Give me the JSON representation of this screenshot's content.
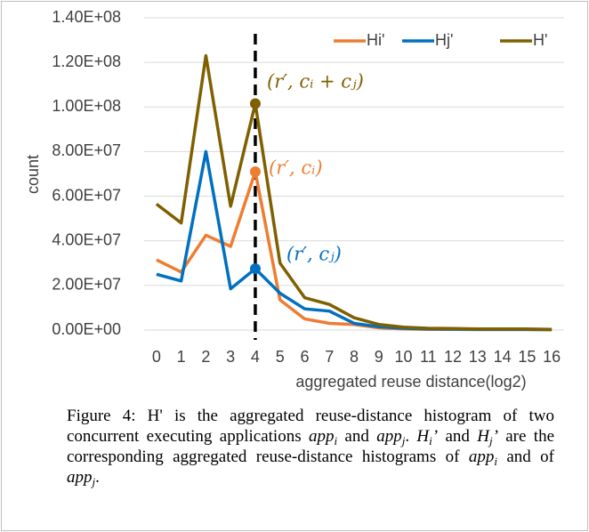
{
  "chart_data": {
    "type": "line",
    "categories": [
      "0",
      "1",
      "2",
      "3",
      "4",
      "5",
      "6",
      "7",
      "8",
      "9",
      "10",
      "11",
      "12",
      "13",
      "14",
      "15",
      "16"
    ],
    "series": [
      {
        "name": "Hi'",
        "color": "#ed7d31",
        "values": [
          31500000,
          26000000,
          42500000,
          37500000,
          71000000,
          13500000,
          5000000,
          3000000,
          2500000,
          1000000,
          500000,
          300000,
          300000,
          200000,
          200000,
          200000,
          100000
        ]
      },
      {
        "name": "Hj'",
        "color": "#0070c0",
        "values": [
          25000000,
          22000000,
          80000000,
          18500000,
          27500000,
          16500000,
          9500000,
          8500000,
          3000000,
          1500000,
          800000,
          500000,
          400000,
          300000,
          300000,
          300000,
          200000
        ]
      },
      {
        "name": "H'",
        "color": "#7f6000",
        "values": [
          56500000,
          48000000,
          123000000,
          55500000,
          101500000,
          30000000,
          14500000,
          11500000,
          5500000,
          2500000,
          1300000,
          800000,
          700000,
          500000,
          500000,
          500000,
          300000
        ]
      }
    ],
    "ylim": [
      0,
      140000000
    ],
    "yticks": [
      {
        "value": 0,
        "label": "0.00E+00"
      },
      {
        "value": 20000000,
        "label": "2.00E+07"
      },
      {
        "value": 40000000,
        "label": "4.00E+07"
      },
      {
        "value": 60000000,
        "label": "6.00E+07"
      },
      {
        "value": 80000000,
        "label": "8.00E+07"
      },
      {
        "value": 100000000,
        "label": "1.00E+08"
      },
      {
        "value": 120000000,
        "label": "1.20E+08"
      },
      {
        "value": 140000000,
        "label": "1.40E+08"
      }
    ],
    "grid": true,
    "ylabel": "count",
    "xlabel": "aggregated reuse distance(log2)",
    "legend": "top-right",
    "annotations": [
      {
        "text": "(r′, cᵢ + cⱼ)",
        "color": "#7f6000"
      },
      {
        "text": "(r′, cᵢ)",
        "color": "#ed7d31"
      },
      {
        "text": "(r′, cⱼ)",
        "color": "#0070c0"
      }
    ]
  },
  "caption": [
    {
      "text": "Figure 4: H' is the aggregated reuse-distance histogram of two concurrent executing applications ",
      "style": "plain"
    },
    {
      "text": "app",
      "style": "italic"
    },
    {
      "text": "i",
      "style": "sub"
    },
    {
      "text": " and ",
      "style": "plain"
    },
    {
      "text": "app",
      "style": "italic"
    },
    {
      "text": "j",
      "style": "sub"
    },
    {
      "text": ". ",
      "style": "plain"
    },
    {
      "text": "H",
      "style": "italic"
    },
    {
      "text": "i",
      "style": "sub"
    },
    {
      "text": "’",
      "style": "italic"
    },
    {
      "text": " and ",
      "style": "plain"
    },
    {
      "text": "H",
      "style": "italic"
    },
    {
      "text": "j",
      "style": "sub"
    },
    {
      "text": "’",
      "style": "italic"
    },
    {
      "text": " are the corresponding aggregated reuse-distance histograms of ",
      "style": "plain"
    },
    {
      "text": "app",
      "style": "italic"
    },
    {
      "text": "i",
      "style": "sub"
    },
    {
      "text": " and of ",
      "style": "plain"
    },
    {
      "text": "app",
      "style": "italic"
    },
    {
      "text": "j",
      "style": "sub"
    },
    {
      "text": ".",
      "style": "plain"
    }
  ]
}
